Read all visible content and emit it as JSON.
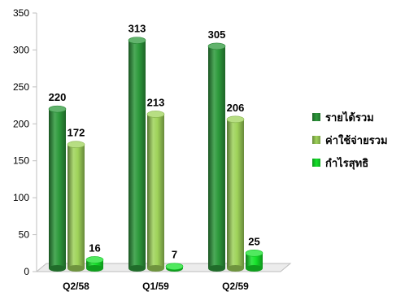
{
  "chart_data": {
    "type": "bar",
    "style": "3d-cylinder",
    "categories": [
      "Q2/58",
      "Q1/59",
      "Q2/59"
    ],
    "series": [
      {
        "name": "รายได้รวม",
        "values": [
          220,
          313,
          305
        ],
        "color": "#2e9a3c"
      },
      {
        "name": "ค่าใช้จ่ายรวม",
        "values": [
          172,
          213,
          206
        ],
        "color": "#9fd35a"
      },
      {
        "name": "กำไรสุทธิ",
        "values": [
          16,
          7,
          25
        ],
        "color": "#15e22a"
      }
    ],
    "ylim": [
      0,
      350
    ],
    "yticks": [
      0,
      50,
      100,
      150,
      200,
      250,
      300,
      350
    ],
    "grid": false,
    "data_labels": true,
    "legend_position": "right"
  }
}
